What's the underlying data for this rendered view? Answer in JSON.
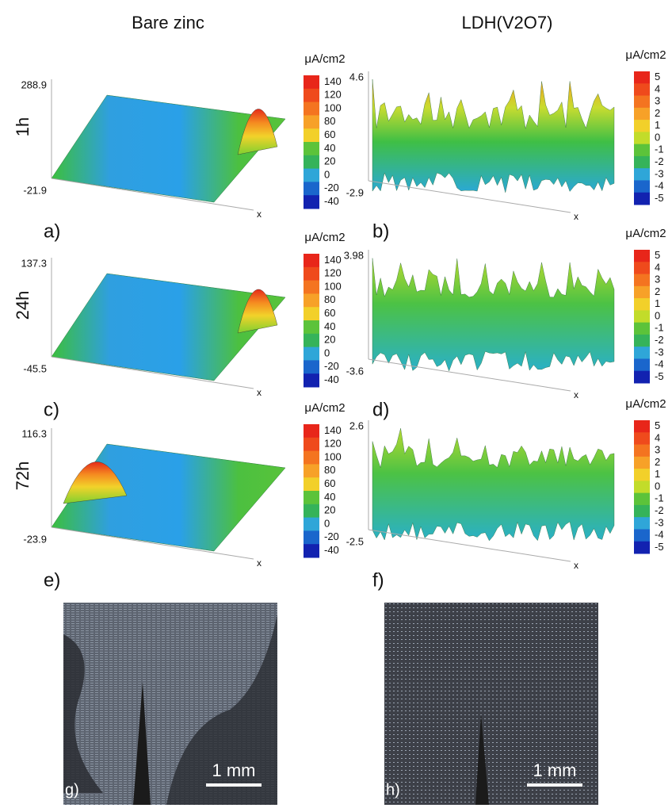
{
  "columns": [
    "Bare zinc",
    "LDH(V2O7)"
  ],
  "rows": [
    "1h",
    "24h",
    "72h"
  ],
  "panels": [
    {
      "label": "a)",
      "z_max": 288.9,
      "z_min": -21.9,
      "axis": "x",
      "colorbar": {
        "unit": "μA/cm2",
        "ticks": [
          140,
          120,
          100,
          80,
          60,
          40,
          20,
          0,
          -20,
          -40
        ]
      }
    },
    {
      "label": "b)",
      "z_max": 4.6,
      "z_min": -2.9,
      "axis": "x",
      "colorbar": {
        "unit": "μA/cm2",
        "ticks": [
          5,
          4,
          3,
          2,
          1,
          0,
          -1,
          -2,
          -3,
          -4,
          -5
        ]
      }
    },
    {
      "label": "c)",
      "z_max": 137.3,
      "z_min": -45.5,
      "axis": "x",
      "colorbar": {
        "unit": "μA/cm2",
        "ticks": [
          140,
          120,
          100,
          80,
          60,
          40,
          20,
          0,
          -20,
          -40
        ]
      }
    },
    {
      "label": "d)",
      "z_max": 3.98,
      "z_min": -3.6,
      "axis": "x",
      "colorbar": {
        "unit": "μA/cm2",
        "ticks": [
          5,
          4,
          3,
          2,
          1,
          0,
          -1,
          -2,
          -3,
          -4,
          -5
        ]
      }
    },
    {
      "label": "e)",
      "z_max": 116.3,
      "z_min": -23.9,
      "axis": "x",
      "colorbar": {
        "unit": "μA/cm2",
        "ticks": [
          140,
          120,
          100,
          80,
          60,
          40,
          20,
          0,
          -20,
          -40
        ]
      }
    },
    {
      "label": "f)",
      "z_max": 2.6,
      "z_min": -2.5,
      "axis": "x",
      "colorbar": {
        "unit": "μA/cm2",
        "ticks": [
          5,
          4,
          3,
          2,
          1,
          0,
          -1,
          -2,
          -3,
          -4,
          -5
        ]
      }
    }
  ],
  "photos": [
    {
      "label": "g)",
      "scale": "1 mm"
    },
    {
      "label": "h)",
      "scale": "1 mm"
    }
  ]
}
